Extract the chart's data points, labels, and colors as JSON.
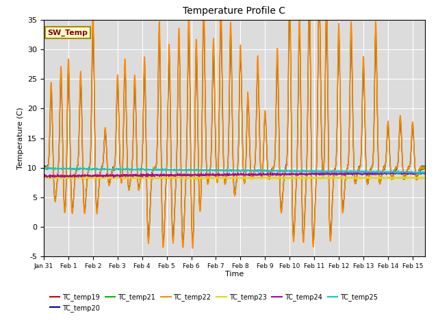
{
  "title": "Temperature Profile C",
  "xlabel": "Time",
  "ylabel": "Temperature (C)",
  "ylim": [
    -5,
    35
  ],
  "xlim": [
    0,
    15.5
  ],
  "background_color": "#dcdcdc",
  "figure_color": "#ffffff",
  "series_order": [
    "TC_temp19",
    "TC_temp20",
    "TC_temp21",
    "TC_temp22",
    "TC_temp23",
    "TC_temp24",
    "TC_temp25"
  ],
  "series": {
    "TC_temp19": {
      "color": "#cc0000",
      "lw": 0.8
    },
    "TC_temp20": {
      "color": "#000099",
      "lw": 0.8
    },
    "TC_temp21": {
      "color": "#00bb00",
      "lw": 0.8
    },
    "TC_temp22": {
      "color": "#ff8800",
      "lw": 1.2
    },
    "TC_temp23": {
      "color": "#dddd00",
      "lw": 0.8
    },
    "TC_temp24": {
      "color": "#aa00aa",
      "lw": 0.8
    },
    "TC_temp25": {
      "color": "#00cccc",
      "lw": 0.8
    }
  },
  "sw_temp_box": {
    "text": "SW_Temp",
    "facecolor": "#ffffcc",
    "edgecolor": "#aa8800",
    "textcolor": "#880000",
    "fontsize": 8
  },
  "xtick_labels": [
    "Jan 31",
    "Feb 1",
    "Feb 2",
    "Feb 3",
    "Feb 4",
    "Feb 5",
    "Feb 6",
    "Feb 7",
    "Feb 8",
    "Feb 9",
    "Feb 10",
    "Feb 11",
    "Feb 12",
    "Feb 13",
    "Feb 14",
    "Feb 15"
  ],
  "ytick_labels": [
    -5,
    0,
    5,
    10,
    15,
    20,
    25,
    30,
    35
  ],
  "grid_color": "#ffffff",
  "figsize": [
    6.4,
    4.8
  ],
  "dpi": 100
}
